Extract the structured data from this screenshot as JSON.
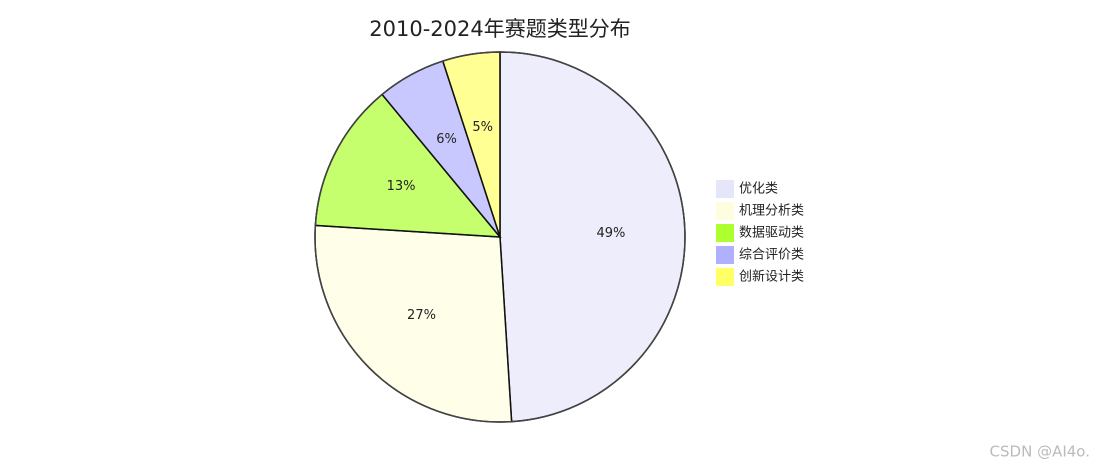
{
  "chart_data": {
    "type": "pie",
    "title": "2010-2024年赛题类型分布",
    "categories": [
      "优化类",
      "机理分析类",
      "数据驱动类",
      "综合评价类",
      "创新设计类"
    ],
    "values": [
      49,
      27,
      13,
      6,
      5
    ],
    "value_labels": [
      "49%",
      "27%",
      "13%",
      "6%",
      "5%"
    ],
    "colors": [
      "#e6e6fa",
      "#fffde0",
      "#adff2f",
      "#b0b0ff",
      "#ffff66"
    ],
    "legend": "right"
  },
  "watermark": "CSDN @AI4o."
}
